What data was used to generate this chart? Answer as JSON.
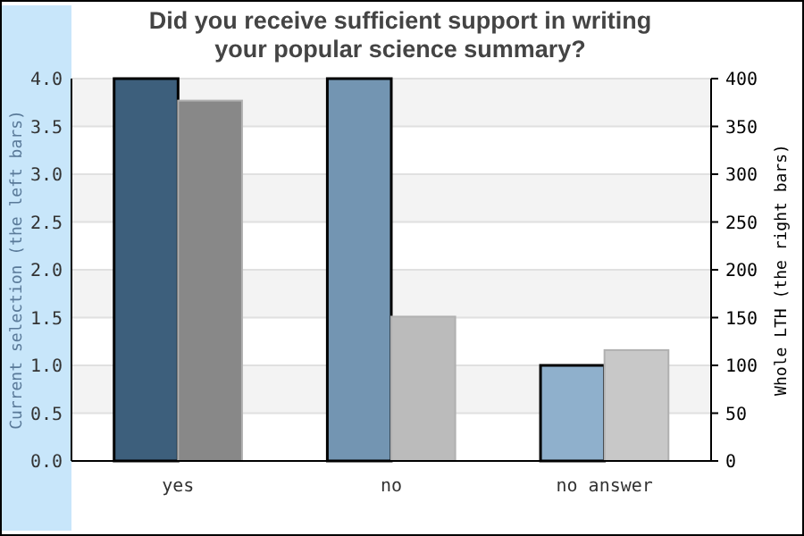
{
  "chart_data": {
    "type": "bar",
    "title": "Did you receive sufficient support in writing\nyour popular science summary?",
    "ylabel": "Current selection (the left bars)",
    "y2label": "Whole LTH (the right bars)",
    "categories": [
      "yes",
      "no",
      "no answer"
    ],
    "series": [
      {
        "colors": [
          "#3d5f7c",
          "#7395b2",
          "#8fb0cc"
        ],
        "values": [
          4,
          4,
          1
        ]
      },
      {
        "colors": [
          "#888888",
          "#bbbbbb",
          "#c8c8c8"
        ],
        "values": [
          377,
          151,
          116
        ],
        "axis": "y2"
      }
    ],
    "ylim": [
      0,
      4
    ],
    "yticks": [
      {
        "value": 0,
        "label": "0.0"
      },
      {
        "value": 0.5,
        "label": "0.5"
      },
      {
        "value": 1,
        "label": "1.0"
      },
      {
        "value": 1.5,
        "label": "1.5"
      },
      {
        "value": 2,
        "label": "2.0"
      },
      {
        "value": 2.5,
        "label": "2.5"
      },
      {
        "value": 3,
        "label": "3.0"
      },
      {
        "value": 3.5,
        "label": "3.5"
      },
      {
        "value": 4,
        "label": "4.0"
      }
    ],
    "y2lim": [
      0,
      400
    ],
    "y2ticks": [
      0,
      50,
      100,
      150,
      200,
      250,
      300,
      350,
      400
    ],
    "grid": "y"
  }
}
